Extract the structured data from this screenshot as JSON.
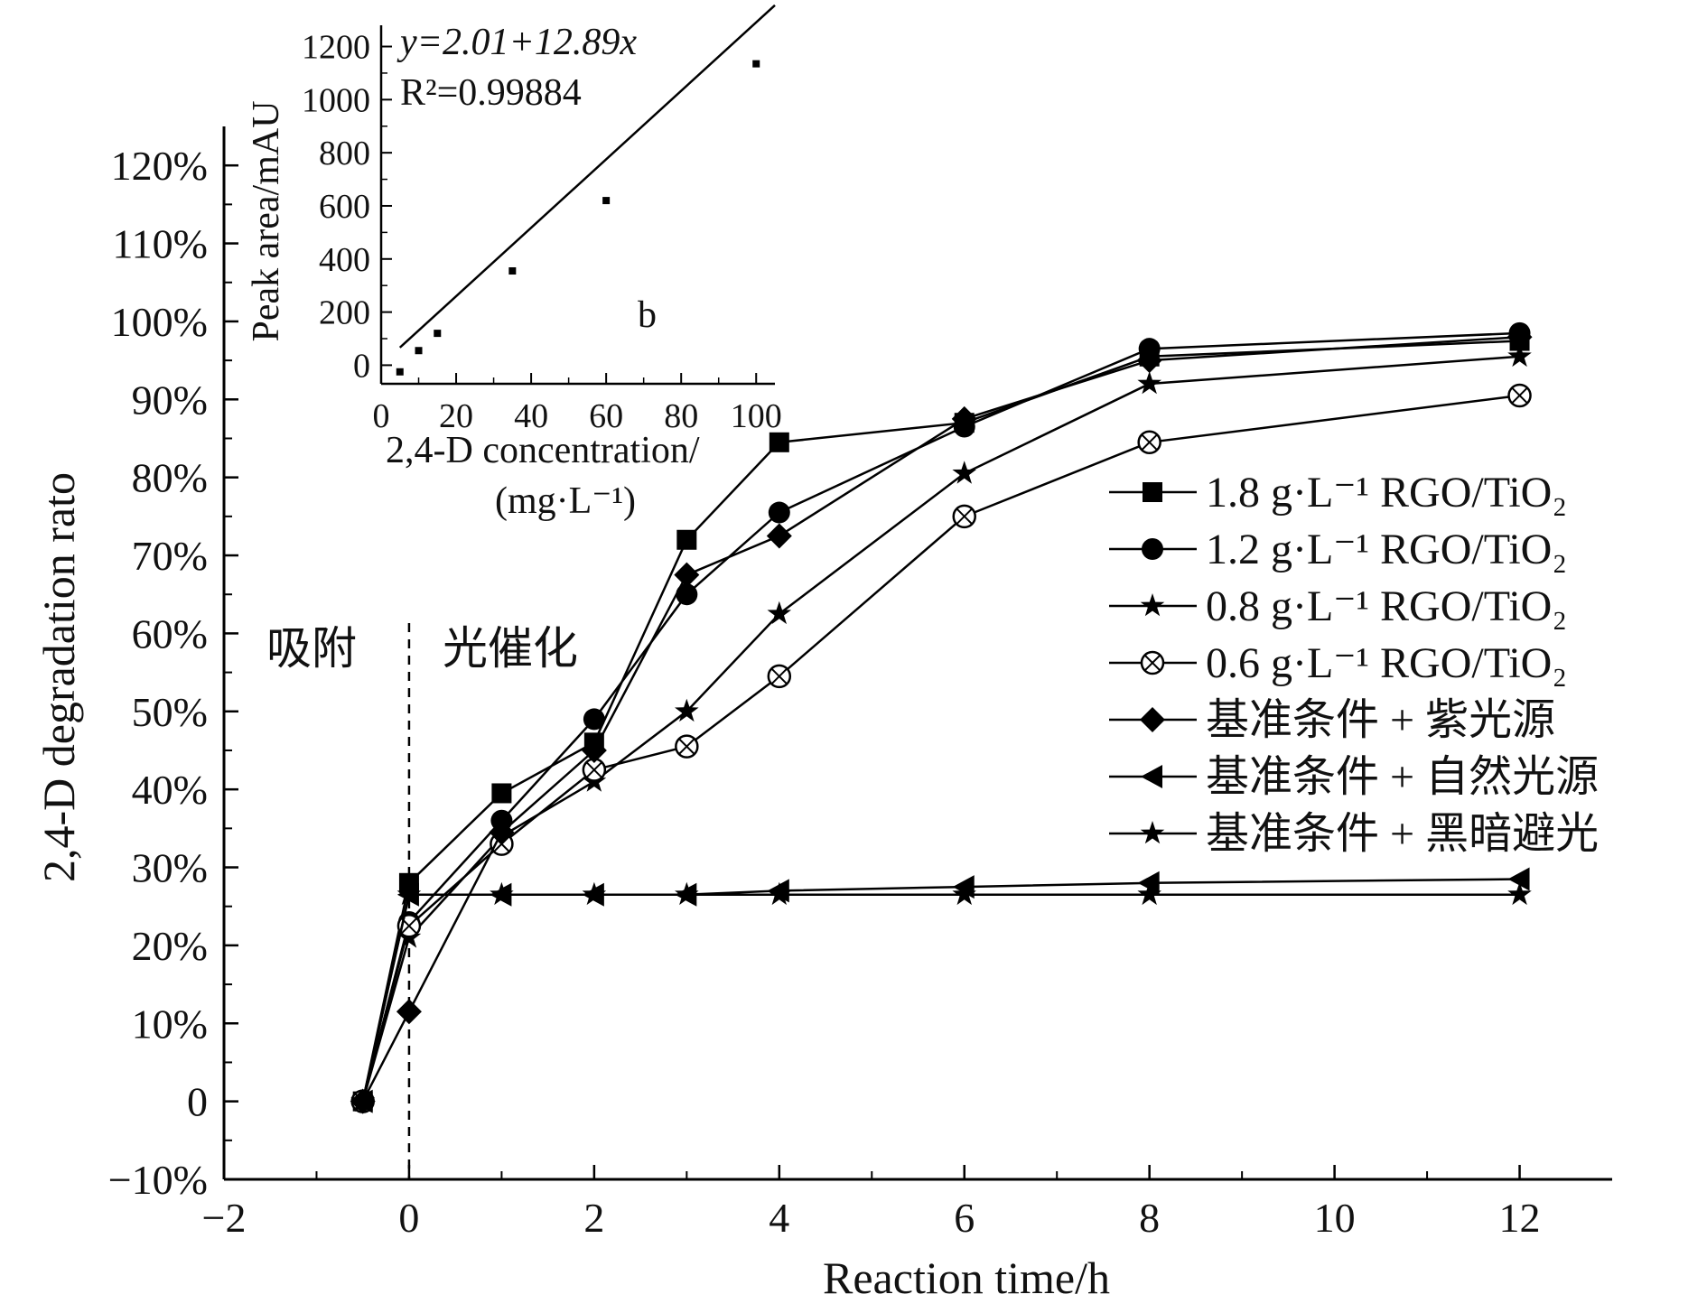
{
  "chart_data": [
    {
      "type": "line",
      "xlabel": "Reaction time/h",
      "ylabel": "2,4-D degradation rato",
      "xlim": [
        -2,
        13
      ],
      "ylim": [
        -10,
        125
      ],
      "x_ticks": [
        -2,
        0,
        2,
        4,
        6,
        8,
        10,
        12
      ],
      "x_tick_labels": [
        "−2",
        "0",
        "2",
        "4",
        "6",
        "8",
        "10",
        "12"
      ],
      "y_ticks": [
        -10,
        0,
        10,
        20,
        30,
        40,
        50,
        60,
        70,
        80,
        90,
        100,
        110,
        120
      ],
      "y_tick_labels": [
        "−10%",
        "0",
        "10%",
        "20%",
        "30%",
        "40%",
        "50%",
        "60%",
        "70%",
        "80%",
        "90%",
        "100%",
        "110%",
        "120%"
      ],
      "grid": false,
      "legend_position": "right",
      "annotations": {
        "adsorption_label": "吸附",
        "photocatalysis_label": "光催化",
        "divider_x": 0
      },
      "x_positions": [
        -0.5,
        0,
        1,
        2,
        3,
        4,
        6,
        8,
        12
      ],
      "series": [
        {
          "name": "1.8 g·L⁻¹ RGO/TiO₂",
          "marker": "square",
          "values": [
            0,
            28,
            39.5,
            46,
            72,
            84.5,
            87,
            95.5,
            97.5
          ]
        },
        {
          "name": "1.2 g·L⁻¹ RGO/TiO₂",
          "marker": "circle",
          "values": [
            0,
            23,
            36,
            49,
            65,
            75.5,
            86.5,
            96.5,
            98.5
          ]
        },
        {
          "name": "0.8 g·L⁻¹ RGO/TiO₂",
          "marker": "star",
          "values": [
            0,
            21,
            34,
            41,
            50,
            62.5,
            80.5,
            92,
            95.5
          ]
        },
        {
          "name": "0.6 g·L⁻¹ RGO/TiO₂",
          "marker": "crossed-circle",
          "values": [
            0,
            22.5,
            33,
            42.5,
            45.5,
            54.5,
            75,
            84.5,
            90.5
          ]
        },
        {
          "name": "基准条件 + 紫光源",
          "marker": "diamond",
          "values": [
            0,
            11.5,
            34.5,
            45,
            67.5,
            72.5,
            87.5,
            95,
            98
          ]
        },
        {
          "name": "基准条件 + 自然光源",
          "marker": "triangle-left",
          "values": [
            0,
            26.5,
            26.5,
            26.5,
            26.5,
            27,
            27.5,
            28,
            28.5
          ]
        },
        {
          "name": "基准条件 + 黑暗避光",
          "marker": "star",
          "values": [
            0,
            26.5,
            26.5,
            26.5,
            26.5,
            26.5,
            26.5,
            26.5,
            26.5
          ]
        }
      ]
    },
    {
      "type": "line",
      "panel_label": "b",
      "xlabel_line1": "2,4-D concentration/",
      "xlabel_line2": "(mg·L⁻¹)",
      "ylabel": "Peak area/mAU",
      "xlim": [
        0,
        105
      ],
      "ylim": [
        -70,
        1280
      ],
      "x_ticks": [
        0,
        20,
        40,
        60,
        80,
        100
      ],
      "x_tick_labels": [
        "0",
        "20",
        "40",
        "60",
        "80",
        "100"
      ],
      "y_ticks": [
        0,
        200,
        400,
        600,
        800,
        1000,
        1200
      ],
      "y_tick_labels": [
        "0",
        "200",
        "400",
        "600",
        "800",
        "1000",
        "1200"
      ],
      "equation": "y=2.01+12.89x",
      "r_squared_label": "R²=0.99884",
      "fit": {
        "intercept": 2.01,
        "slope": 12.89,
        "x_range": [
          5,
          105
        ]
      },
      "points": {
        "x": [
          5,
          10,
          15,
          35,
          60,
          100
        ],
        "y": [
          -25,
          55,
          120,
          355,
          620,
          1135
        ]
      }
    }
  ]
}
